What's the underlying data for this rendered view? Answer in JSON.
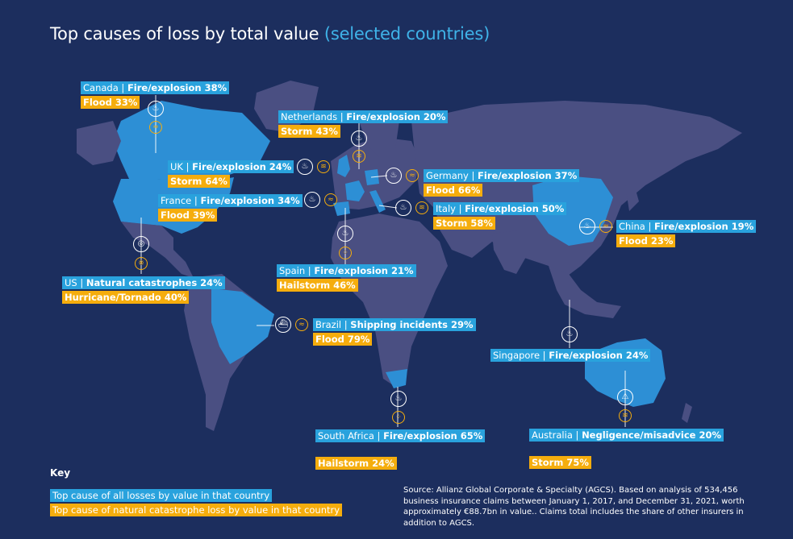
{
  "title": "Top causes of loss by total value",
  "subtitle": "(selected countries)",
  "colors": {
    "background": "#1c2e5e",
    "land": "#4a4f82",
    "highlight": "#2d8fd5",
    "primary": "#29a2dd",
    "natcat": "#f5ad0d"
  },
  "countries": {
    "canada": {
      "country": "Canada",
      "cause": "Fire/explosion 38%",
      "natcat": "Flood 33%"
    },
    "netherlands": {
      "country": "Netherlands",
      "cause": "Fire/explosion 20%",
      "natcat": "Storm 43%"
    },
    "uk": {
      "country": "UK",
      "cause": "Fire/explosion 24%",
      "natcat": "Storm 64%"
    },
    "germany": {
      "country": "Germany",
      "cause": "Fire/explosion 37%",
      "natcat": "Flood 66%"
    },
    "france": {
      "country": "France",
      "cause": "Fire/explosion 34%",
      "natcat": "Flood 39%"
    },
    "italy": {
      "country": "Italy",
      "cause": "Fire/explosion 50%",
      "natcat": "Storm 58%"
    },
    "china": {
      "country": "China",
      "cause": "Fire/explosion 19%",
      "natcat": "Flood 23%"
    },
    "spain": {
      "country": "Spain",
      "cause": "Fire/explosion 21%",
      "natcat": "Hailstorm 46%"
    },
    "us": {
      "country": "US",
      "cause": "Natural catastrophes 24%",
      "natcat": "Hurricane/Tornado 40%"
    },
    "brazil": {
      "country": "Brazil",
      "cause": "Shipping incidents 29%",
      "natcat": "Flood 79%"
    },
    "singapore": {
      "country": "Singapore",
      "cause": "Fire/explosion 24%"
    },
    "south_africa": {
      "country": "South Africa",
      "cause": "Fire/explosion 65%",
      "natcat": "Hailstorm 24%"
    },
    "australia": {
      "country": "Australia",
      "cause": "Negligence/misadvice 20%",
      "natcat": "Storm 75%"
    }
  },
  "icons": {
    "fire": "fire-icon",
    "flood": "flood-icon",
    "storm": "storm-icon",
    "hail": "hail-icon",
    "hurricane": "hurricane-icon",
    "ship": "ship-icon",
    "warning": "warning-icon"
  },
  "key": {
    "title": "Key",
    "primary": "Top cause of all losses by value in that country",
    "natcat": "Top cause of natural catastrophe loss by value in that country"
  },
  "source": "Source: Allianz Global Corporate & Specialty (AGCS). Based on analysis of 534,456 business insurance claims between January 1, 2017, and December 31, 2021, worth approximately €88.7bn in value.. Claims total includes the share of other insurers in addition to AGCS."
}
